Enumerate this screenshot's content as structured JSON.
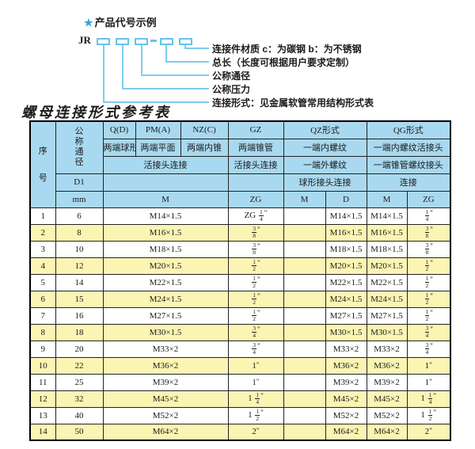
{
  "diagram": {
    "star": "★",
    "title": "产品代号示例",
    "prefix": "JR",
    "labels": [
      "连接件材质  c：为碳钢  b：为不锈钢",
      "总长（长度可根据用户要求定制）",
      "公称通径",
      "公称压力",
      "连接形式：见金属软管常用结构形式表"
    ]
  },
  "table": {
    "title": "螺母连接形式参考表",
    "header": {
      "serial": "序号",
      "dn_vertical": "公称通径",
      "d1": "D1",
      "groups": [
        {
          "code": "Q(D)",
          "desc": "两端球形"
        },
        {
          "code": "PM(A)",
          "desc": "两端平面"
        },
        {
          "code": "NZ(C)",
          "desc": "两端内锥"
        },
        {
          "code": "GZ",
          "desc": "两端锥管"
        },
        {
          "code": "QZ形式",
          "desc": "一端内螺纹"
        },
        {
          "code": "QG形式",
          "desc": "一端内螺纹活接头"
        }
      ],
      "row3": {
        "left_merge": "活接头连接",
        "gz": "活接头连接",
        "qz": "一端外螺纹",
        "qg": "一端锥管螺纹接头"
      },
      "row4": {
        "qz": "球形接头连接",
        "qg": "连接"
      },
      "units_row": [
        "mm",
        "M",
        "ZG",
        "M",
        "D",
        "M",
        "ZG"
      ]
    },
    "rows": [
      [
        "1",
        "6",
        "M14×1.5",
        "ZG 1/4\"",
        "",
        "M14×1.5",
        "M14×1.5",
        "1/4\""
      ],
      [
        "2",
        "8",
        "M16×1.5",
        "3/8\"",
        "",
        "M16×1.5",
        "M16×1.5",
        "3/8\""
      ],
      [
        "3",
        "10",
        "M18×1.5",
        "3/8\"",
        "",
        "M18×1.5",
        "M18×1.5",
        "3/8\""
      ],
      [
        "4",
        "12",
        "M20×1.5",
        "1/2\"",
        "",
        "M20×1.5",
        "M20×1.5",
        "1/2\""
      ],
      [
        "5",
        "14",
        "M22×1.5",
        "1/2\"",
        "",
        "M22×1.5",
        "M22×1.5",
        "1/2\""
      ],
      [
        "6",
        "15",
        "M24×1.5",
        "1/2\"",
        "",
        "M24×1.5",
        "M24×1.5",
        "1/2\""
      ],
      [
        "7",
        "16",
        "M27×1.5",
        "1/2\"",
        "",
        "M27×1.5",
        "M27×1.5",
        "1/2\""
      ],
      [
        "8",
        "18",
        "M30×1.5",
        "3/4\"",
        "",
        "M30×1.5",
        "M30×1.5",
        "3/4\""
      ],
      [
        "9",
        "20",
        "M33×2",
        "3/4\"",
        "",
        "M33×2",
        "M33×2",
        "3/4\""
      ],
      [
        "10",
        "22",
        "M36×2",
        "1\"",
        "",
        "M36×2",
        "M36×2",
        "1\""
      ],
      [
        "11",
        "25",
        "M39×2",
        "1\"",
        "",
        "M39×2",
        "M39×2",
        "1\""
      ],
      [
        "12",
        "32",
        "M45×2",
        "1 1/4\"",
        "",
        "M45×2",
        "M45×2",
        "1 1/4\""
      ],
      [
        "13",
        "40",
        "M52×2",
        "1 1/2\"",
        "",
        "M52×2",
        "M52×2",
        "1 1/2\""
      ],
      [
        "14",
        "50",
        "M64×2",
        "2\"",
        "",
        "M64×2",
        "M64×2",
        "2\""
      ]
    ]
  },
  "colors": {
    "header_blue": "#a9d9f0",
    "row_yellow": "#fbf5b4",
    "line_blue": "#66c4e8",
    "star_blue": "#2ba7de"
  }
}
